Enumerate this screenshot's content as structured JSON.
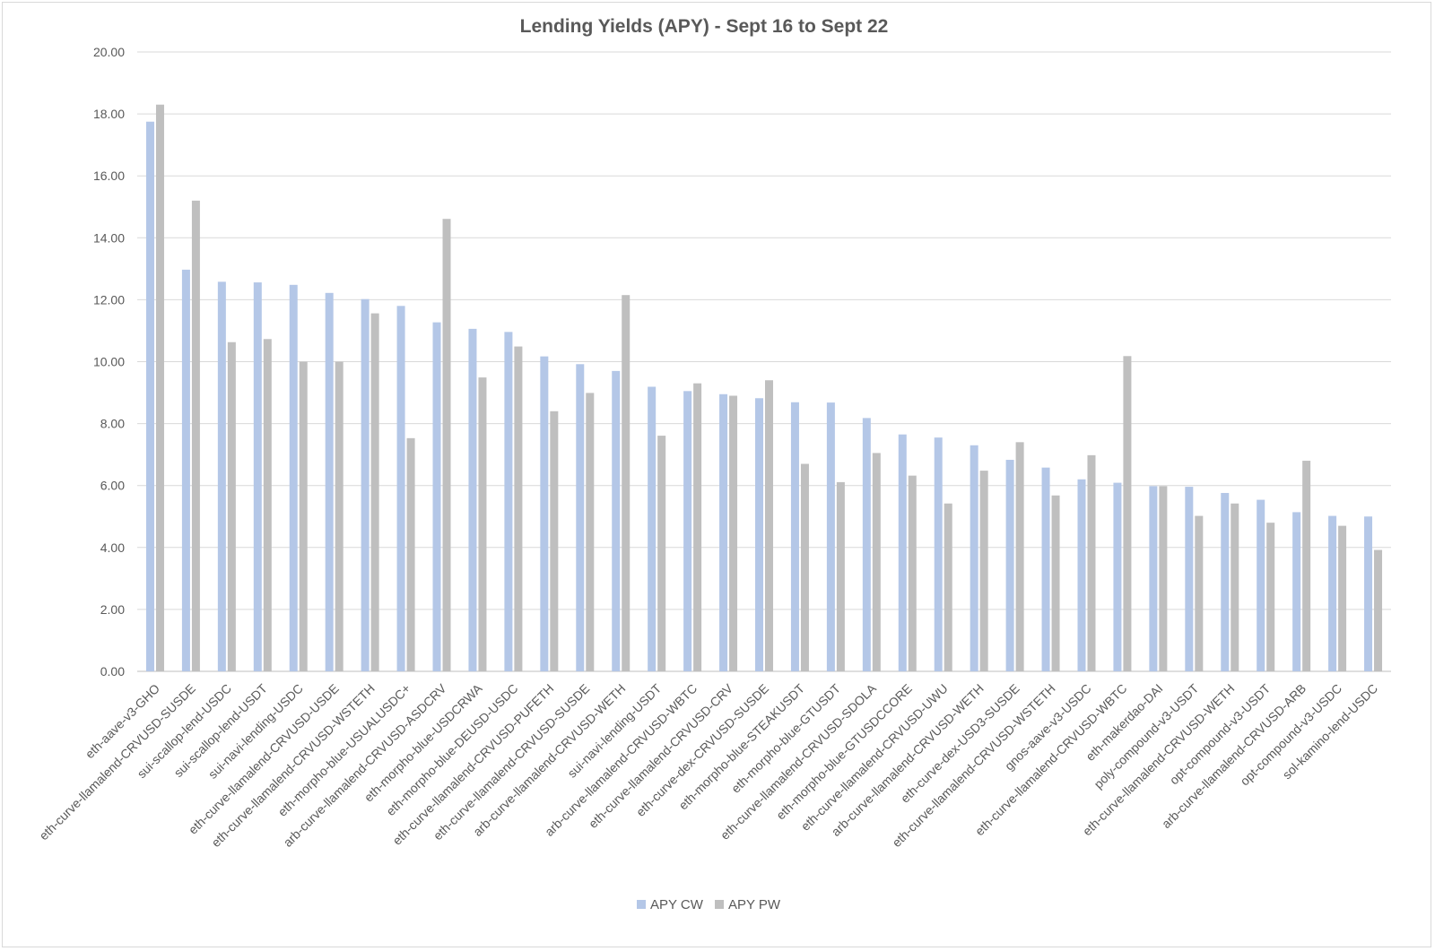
{
  "chart_data": {
    "type": "bar",
    "title": "Lending Yields (APY) - Sept 16 to Sept 22",
    "xlabel": "",
    "ylabel": "",
    "ylim": [
      0,
      20
    ],
    "y_ticks": [
      "0.00",
      "2.00",
      "4.00",
      "6.00",
      "8.00",
      "10.00",
      "12.00",
      "14.00",
      "16.00",
      "18.00",
      "20.00"
    ],
    "grid": "horizontal",
    "legend_position": "bottom",
    "categories": [
      "eth-aave-v3-GHO",
      "eth-curve-llamalend-CRVUSD-SUSDE",
      "sui-scallop-lend-USDC",
      "sui-scallop-lend-USDT",
      "sui-navi-lending-USDC",
      "eth-curve-llamalend-CRVUSD-USDE",
      "eth-curve-llamalend-CRVUSD-WSTETH",
      "eth-morpho-blue-USUALUSDC+",
      "arb-curve-llamalend-CRVUSD-ASDCRV",
      "eth-morpho-blue-USDCRWA",
      "eth-morpho-blue-DEUSD-USDC",
      "eth-curve-llamalend-CRVUSD-PUFETH",
      "eth-curve-llamalend-CRVUSD-SUSDE",
      "arb-curve-llamalend-CRVUSD-WETH",
      "sui-navi-lending-USDT",
      "arb-curve-llamalend-CRVUSD-WBTC",
      "eth-curve-llamalend-CRVUSD-CRV",
      "eth-curve-dex-CRVUSD-SUSDE",
      "eth-morpho-blue-STEAKUSDT",
      "eth-morpho-blue-GTUSDT",
      "eth-curve-llamalend-CRVUSD-SDOLA",
      "eth-morpho-blue-GTUSDCCORE",
      "eth-curve-llamalend-CRVUSD-UWU",
      "arb-curve-llamalend-CRVUSD-WETH",
      "eth-curve-dex-USD3-SUSDE",
      "eth-curve-llamalend-CRVUSD-WSTETH",
      "gnos-aave-v3-USDC",
      "eth-curve-llamalend-CRVUSD-WBTC",
      "eth-makerdao-DAI",
      "poly-compound-v3-USDT",
      "eth-curve-llamalend-CRVUSD-WETH",
      "opt-compound-v3-USDT",
      "arb-curve-llamalend-CRVUSD-ARB",
      "opt-compound-v3-USDC",
      "sol-kamino-lend-USDC"
    ],
    "series": [
      {
        "name": "APY CW",
        "color": "#b4c7e7",
        "values": [
          17.75,
          12.97,
          12.58,
          12.56,
          12.48,
          12.22,
          12.02,
          11.8,
          11.27,
          11.06,
          10.96,
          10.17,
          9.92,
          9.7,
          9.19,
          9.05,
          8.95,
          8.82,
          8.69,
          8.68,
          8.18,
          7.65,
          7.55,
          7.3,
          6.83,
          6.58,
          6.2,
          6.09,
          5.98,
          5.96,
          5.76,
          5.54,
          5.14,
          5.02,
          5.0
        ]
      },
      {
        "name": "APY PW",
        "color": "#bfbfbf",
        "values": [
          18.3,
          15.2,
          10.63,
          10.73,
          10.0,
          10.0,
          11.56,
          7.53,
          14.61,
          9.49,
          10.49,
          8.4,
          8.99,
          12.15,
          7.61,
          9.3,
          8.9,
          9.4,
          6.7,
          6.11,
          7.05,
          6.32,
          5.42,
          6.48,
          7.4,
          5.68,
          6.98,
          10.18,
          5.98,
          5.02,
          5.42,
          4.8,
          6.8,
          4.7,
          3.92
        ]
      }
    ]
  }
}
